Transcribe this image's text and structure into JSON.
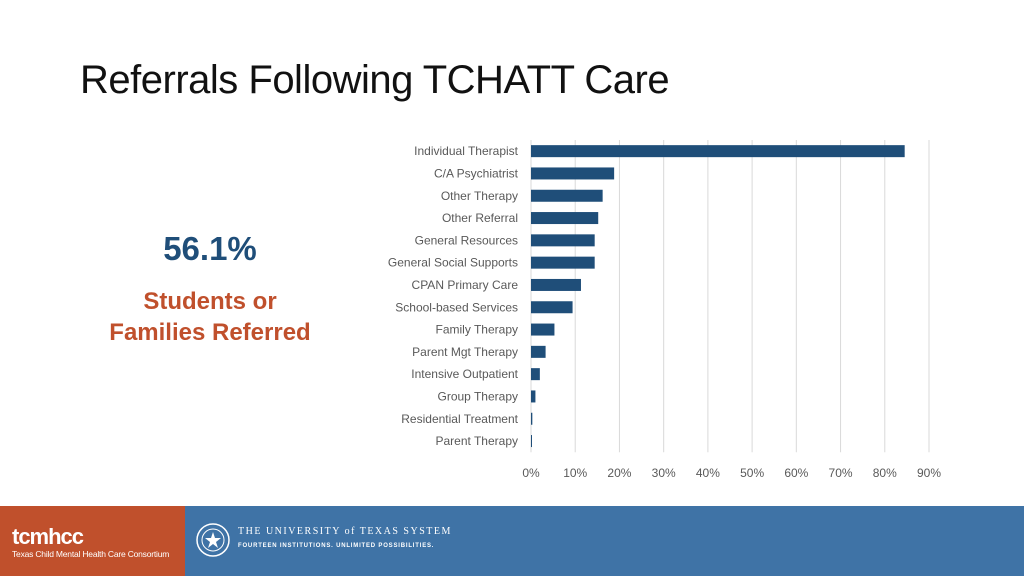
{
  "title": "Referrals Following TCHATT Care",
  "stat": {
    "value": "56.1%",
    "label_line1": "Students or",
    "label_line2": "Families Referred"
  },
  "colors": {
    "bar": "#1f4e79",
    "stat_value": "#1f4e79",
    "stat_label": "#c0502c",
    "footer_left": "#c0502c",
    "footer": "#3f73a6"
  },
  "chart_data": {
    "type": "bar",
    "orientation": "horizontal",
    "categories": [
      "Individual Therapist",
      "C/A Psychiatrist",
      "Other Therapy",
      "Other Referral",
      "General Resources",
      "General Social Supports",
      "CPAN Primary Care",
      "School-based Services",
      "Family Therapy",
      "Parent Mgt Therapy",
      "Intensive Outpatient",
      "Group Therapy",
      "Residential Treatment",
      "Parent Therapy"
    ],
    "values": [
      84.5,
      18.8,
      16.2,
      15.2,
      14.4,
      14.4,
      11.3,
      9.4,
      5.3,
      3.3,
      2.0,
      1.0,
      0.3,
      0.1
    ],
    "xlim": [
      0,
      90
    ],
    "xticks": [
      "0%",
      "10%",
      "20%",
      "30%",
      "40%",
      "50%",
      "60%",
      "70%",
      "80%",
      "90%"
    ],
    "grid": true,
    "legend": "none"
  },
  "footer": {
    "brand": "tcmhcc",
    "brand_sub": "Texas Child Mental Health Care Consortium",
    "ut_name": "THE UNIVERSITY of TEXAS SYSTEM",
    "ut_tagline": "FOURTEEN INSTITUTIONS. UNLIMITED POSSIBILITIES."
  }
}
